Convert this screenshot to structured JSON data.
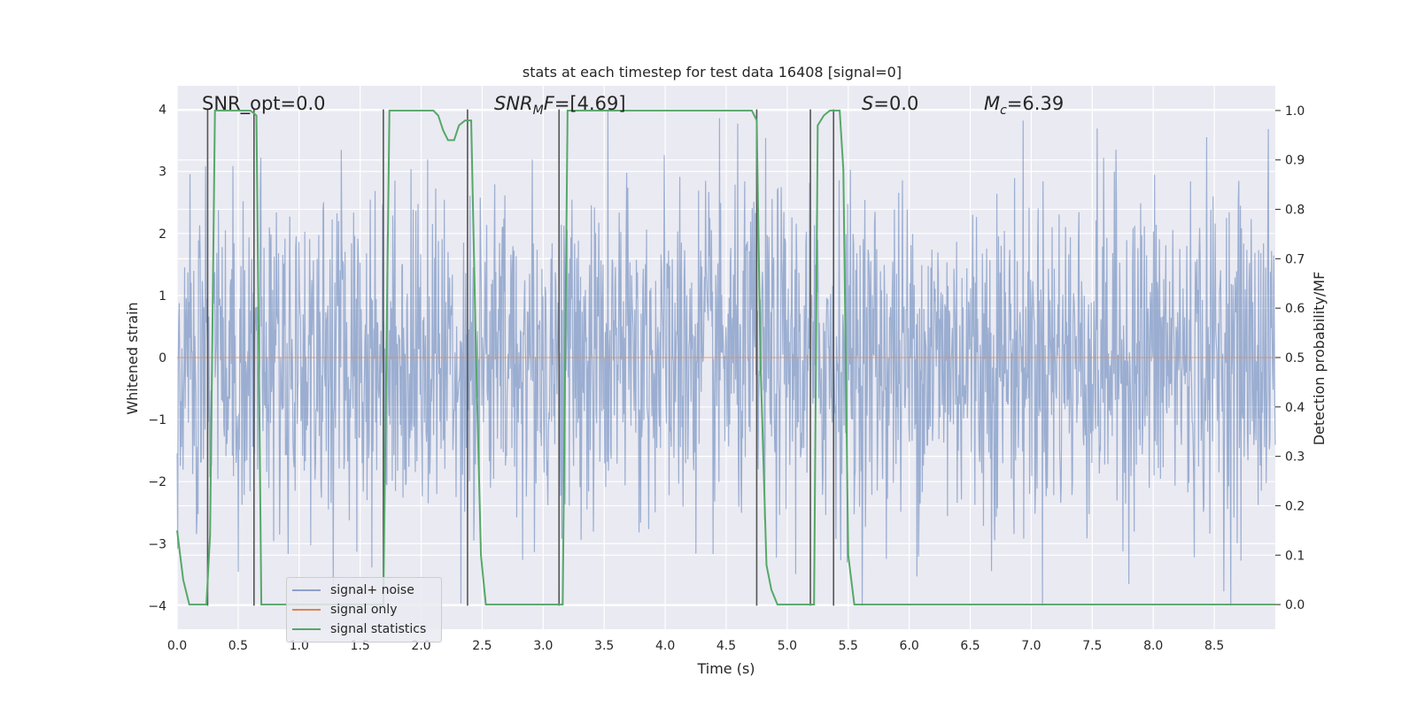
{
  "chart_data": {
    "type": "line",
    "title": "stats at each timestep for test data 16408 [signal=0]",
    "xlabel": "Time (s)",
    "ylabel_left": "Whitened strain",
    "ylabel_right": "Detection probability/MF",
    "xlim": [
      0.0,
      9.0
    ],
    "ylim_left": [
      -4.38,
      4.38
    ],
    "ylim_right": [
      -0.05,
      1.05
    ],
    "xticks": [
      "0.0",
      "0.5",
      "1.0",
      "1.5",
      "2.0",
      "2.5",
      "3.0",
      "3.5",
      "4.0",
      "4.5",
      "5.0",
      "5.5",
      "6.0",
      "6.5",
      "7.0",
      "7.5",
      "8.0",
      "8.5"
    ],
    "yticks_left": [
      "4",
      "3",
      "2",
      "1",
      "0",
      "−1",
      "−2",
      "−3",
      "−4"
    ],
    "yticks_right": [
      "1.0",
      "0.9",
      "0.8",
      "0.7",
      "0.6",
      "0.5",
      "0.4",
      "0.3",
      "0.2",
      "0.1",
      "0.0"
    ],
    "grid": true,
    "legend_position": "lower-left",
    "annotations": {
      "snr_opt": "SNR_opt=0.0",
      "snr_mf": "=[4.69]",
      "s": "=0.0",
      "mc": "=6.39"
    },
    "vertical_markers": [
      0.25,
      0.63,
      1.69,
      2.38,
      3.13,
      4.75,
      5.19,
      5.38
    ],
    "series": [
      {
        "name": "signal+ noise",
        "color": "#4c72b0",
        "description": "whitened strain noise, amplitude roughly within ±4",
        "noise_sigma": 1.0,
        "samples": 2048
      },
      {
        "name": "signal only",
        "color": "#dd8452",
        "x": [
          0.0,
          9.0
        ],
        "y": [
          0.0,
          0.0
        ]
      },
      {
        "name": "signal statistics",
        "color": "#55a868",
        "x": [
          0.0,
          0.05,
          0.1,
          0.15,
          0.19,
          0.24,
          0.27,
          0.31,
          0.35,
          0.4,
          0.5,
          0.55,
          0.6,
          0.65,
          0.69,
          0.74,
          0.8,
          0.9,
          1.0,
          1.1,
          1.2,
          1.3,
          1.4,
          1.5,
          1.6,
          1.66,
          1.69,
          1.74,
          1.8,
          1.9,
          2.0,
          2.1,
          2.14,
          2.18,
          2.22,
          2.27,
          2.31,
          2.36,
          2.41,
          2.45,
          2.49,
          2.53,
          2.6,
          2.7,
          2.8,
          2.9,
          3.0,
          3.1,
          3.16,
          3.2,
          3.3,
          3.5,
          4.0,
          4.5,
          4.71,
          4.75,
          4.78,
          4.83,
          4.87,
          4.92,
          5.0,
          5.1,
          5.18,
          5.22,
          5.25,
          5.3,
          5.35,
          5.39,
          5.43,
          5.46,
          5.5,
          5.55,
          5.6,
          6.0,
          7.0,
          8.0,
          9.0
        ],
        "y": [
          0.15,
          0.05,
          0.0,
          0.0,
          0.0,
          0.0,
          0.14,
          1.0,
          1.0,
          1.0,
          1.0,
          1.0,
          1.0,
          0.99,
          0.0,
          0.0,
          0.0,
          0.0,
          0.0,
          0.0,
          0.0,
          0.0,
          0.0,
          0.0,
          0.0,
          0.0,
          0.0,
          1.0,
          1.0,
          1.0,
          1.0,
          1.0,
          0.99,
          0.96,
          0.94,
          0.94,
          0.97,
          0.98,
          0.98,
          0.5,
          0.1,
          0.0,
          0.0,
          0.0,
          0.0,
          0.0,
          0.0,
          0.0,
          0.0,
          1.0,
          1.0,
          1.0,
          1.0,
          1.0,
          1.0,
          0.98,
          0.5,
          0.08,
          0.03,
          0.0,
          0.0,
          0.0,
          0.0,
          0.0,
          0.97,
          0.99,
          1.0,
          1.0,
          1.0,
          0.88,
          0.1,
          0.0,
          0.0,
          0.0,
          0.0,
          0.0,
          0.0
        ]
      }
    ]
  }
}
